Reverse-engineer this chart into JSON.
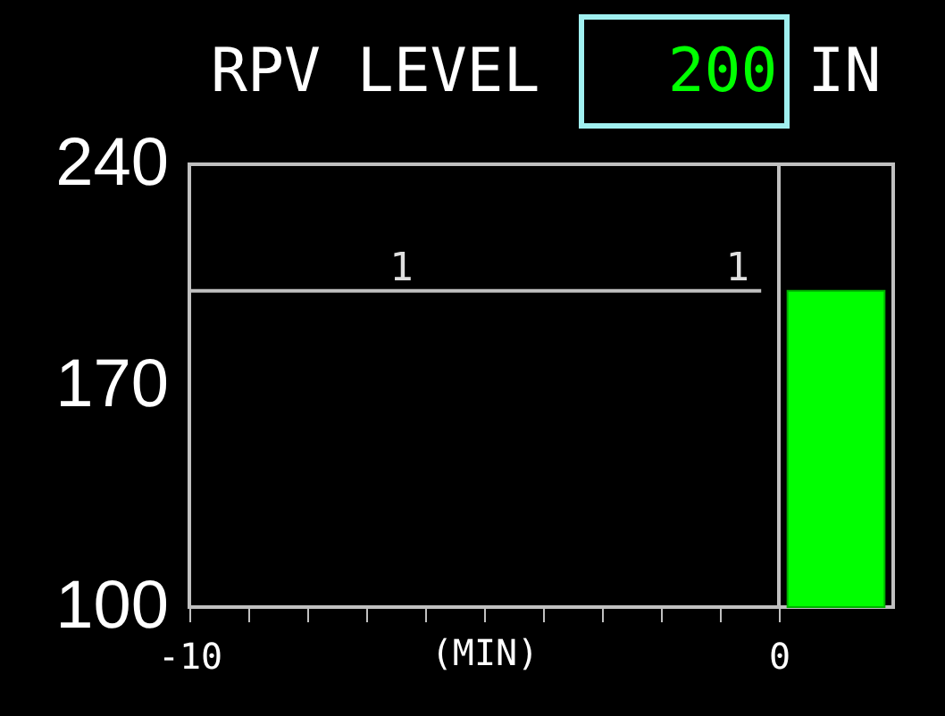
{
  "chart_data": [
    {
      "type": "line",
      "title": "RPV LEVEL",
      "xlabel": "(MIN)",
      "annotations": [
        "200",
        "IN",
        {
          "text": "1",
          "x": -6.4,
          "y": 200
        },
        {
          "text": "1",
          "x": -0.7,
          "y": 200
        }
      ],
      "series": [
        {
          "color": "#c0c0c0",
          "x": [
            -10,
            -0.3
          ],
          "values": [
            200,
            200
          ]
        }
      ],
      "xlim": [
        -10,
        0
      ],
      "xticks": [
        -10,
        {
          "value": -9,
          "label": null
        },
        {
          "value": -8,
          "label": null
        },
        {
          "value": -7,
          "label": null
        },
        {
          "value": -6,
          "label": null
        },
        {
          "value": -5,
          "label": null
        },
        {
          "value": -4,
          "label": null
        },
        {
          "value": -3,
          "label": null
        },
        {
          "value": -2,
          "label": null
        },
        {
          "value": -1,
          "label": null
        },
        0
      ],
      "ylim": [
        100,
        240
      ],
      "yticks": [
        100,
        170,
        240
      ],
      "grid": false
    },
    {
      "type": "bar",
      "categories": [
        null
      ],
      "values": [
        200
      ],
      "colors": [
        "#00ff00"
      ],
      "ylim": [
        100,
        240
      ],
      "tick_labels": false
    }
  ]
}
